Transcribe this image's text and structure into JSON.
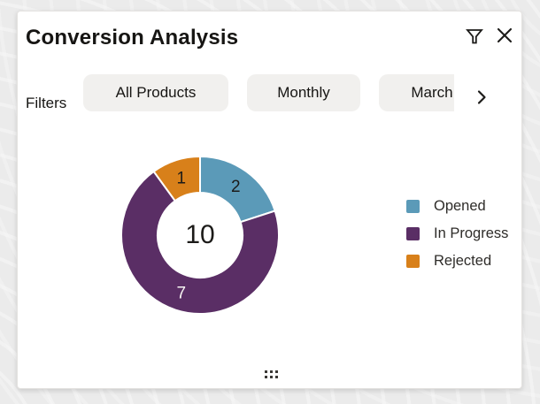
{
  "panel": {
    "title": "Conversion Analysis"
  },
  "filters": {
    "label": "Filters",
    "chips": [
      {
        "label": "All Products"
      },
      {
        "label": "Monthly"
      },
      {
        "label": "March"
      }
    ]
  },
  "chart_data": {
    "type": "pie",
    "subtype": "donut",
    "title": "Conversion Analysis",
    "total": 10,
    "center_label": "10",
    "legend_position": "right",
    "start_angle_deg": 0,
    "direction": "clockwise",
    "series": [
      {
        "name": "Opened",
        "value": 2,
        "color": "#5b9ab8"
      },
      {
        "name": "In Progress",
        "value": 7,
        "color": "#5a2e65"
      },
      {
        "name": "Rejected",
        "value": 1,
        "color": "#d8801a"
      }
    ]
  },
  "colors": {
    "page_bg": "#ebebeb",
    "card_bg": "#ffffff",
    "chip_bg": "#f1f0ee",
    "text": "#161513"
  }
}
